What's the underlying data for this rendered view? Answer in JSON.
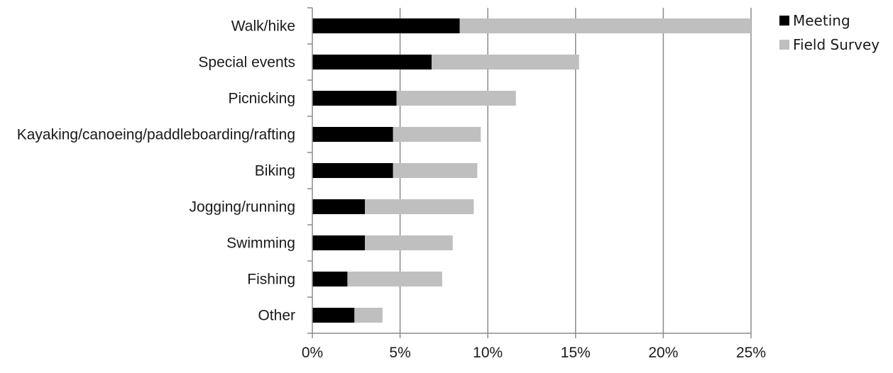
{
  "chart_data": {
    "type": "bar",
    "orientation": "horizontal",
    "stacked": true,
    "title": "",
    "xlabel": "",
    "ylabel": "",
    "categories": [
      "Walk/hike",
      "Special events",
      "Picnicking",
      "Kayaking/canoeing/paddleboarding/rafting",
      "Biking",
      "Jogging/running",
      "Swimming",
      "Fishing",
      "Other"
    ],
    "series": [
      {
        "name": "Meeting",
        "color": "#000000",
        "values": [
          8.4,
          6.8,
          4.8,
          4.6,
          4.6,
          3.0,
          3.0,
          2.0,
          2.4
        ]
      },
      {
        "name": "Field Survey",
        "color": "#bfbfbf",
        "values": [
          16.6,
          8.4,
          6.8,
          5.0,
          4.8,
          6.2,
          5.0,
          5.4,
          1.6
        ]
      }
    ],
    "xlim": [
      0,
      25
    ],
    "xticks": [
      0,
      5,
      10,
      15,
      20,
      25
    ],
    "tick_labels": [
      "0%",
      "5%",
      "10%",
      "15%",
      "20%",
      "25%"
    ],
    "grid": "vertical",
    "legend_position": "top-right"
  }
}
